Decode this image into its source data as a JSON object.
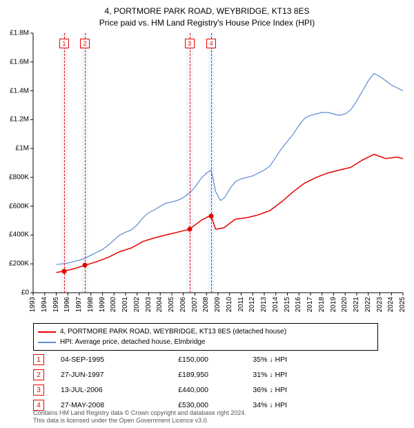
{
  "title_line1": "4, PORTMORE PARK ROAD, WEYBRIDGE, KT13 8ES",
  "title_line2": "Price paid vs. HM Land Registry's House Price Index (HPI)",
  "chart": {
    "type": "line",
    "background_color": "#ffffff",
    "xlim": [
      1993,
      2025
    ],
    "ylim": [
      0,
      1800000
    ],
    "ytick_step": 200000,
    "y_labels": [
      "£0",
      "£200K",
      "£400K",
      "£600K",
      "£800K",
      "£1M",
      "£1.2M",
      "£1.4M",
      "£1.6M",
      "£1.8M"
    ],
    "x_labels": [
      "1993",
      "1994",
      "1995",
      "1996",
      "1997",
      "1998",
      "1999",
      "2000",
      "2001",
      "2002",
      "2003",
      "2004",
      "2005",
      "2006",
      "2007",
      "2008",
      "2009",
      "2010",
      "2011",
      "2012",
      "2013",
      "2014",
      "2015",
      "2016",
      "2017",
      "2018",
      "2019",
      "2020",
      "2021",
      "2022",
      "2023",
      "2024",
      "2025"
    ],
    "series": [
      {
        "name": "price_paid",
        "label": "4, PORTMORE PARK ROAD, WEYBRIDGE, KT13 8ES (detached house)",
        "color": "#e60000",
        "line_width": 1.5,
        "data": [
          [
            1995.0,
            140000
          ],
          [
            1995.68,
            150000
          ],
          [
            1996.5,
            165000
          ],
          [
            1997.49,
            189950
          ],
          [
            1998.5,
            215000
          ],
          [
            1999.5,
            245000
          ],
          [
            2000.5,
            285000
          ],
          [
            2001.5,
            310000
          ],
          [
            2002.5,
            355000
          ],
          [
            2003.5,
            380000
          ],
          [
            2004.5,
            400000
          ],
          [
            2005.5,
            420000
          ],
          [
            2006.53,
            440000
          ],
          [
            2007.5,
            500000
          ],
          [
            2008.2,
            530000
          ],
          [
            2008.41,
            530000
          ],
          [
            2008.8,
            440000
          ],
          [
            2009.5,
            450000
          ],
          [
            2010.5,
            510000
          ],
          [
            2011.5,
            520000
          ],
          [
            2012.5,
            540000
          ],
          [
            2013.5,
            570000
          ],
          [
            2014.5,
            630000
          ],
          [
            2015.5,
            700000
          ],
          [
            2016.5,
            760000
          ],
          [
            2017.5,
            800000
          ],
          [
            2018.5,
            830000
          ],
          [
            2019.5,
            850000
          ],
          [
            2020.5,
            870000
          ],
          [
            2021.5,
            920000
          ],
          [
            2022.5,
            960000
          ],
          [
            2023.5,
            930000
          ],
          [
            2024.5,
            940000
          ],
          [
            2025.0,
            930000
          ]
        ]
      },
      {
        "name": "hpi",
        "label": "HPI: Average price, detached house, Elmbridge",
        "color": "#5b8bd4",
        "line_width": 1.2,
        "data": [
          [
            1995.0,
            195000
          ],
          [
            1995.5,
            200000
          ],
          [
            1996.0,
            205000
          ],
          [
            1996.5,
            215000
          ],
          [
            1997.0,
            225000
          ],
          [
            1997.5,
            240000
          ],
          [
            1998.0,
            260000
          ],
          [
            1998.5,
            280000
          ],
          [
            1999.0,
            300000
          ],
          [
            1999.5,
            330000
          ],
          [
            2000.0,
            365000
          ],
          [
            2000.5,
            400000
          ],
          [
            2001.0,
            420000
          ],
          [
            2001.5,
            435000
          ],
          [
            2002.0,
            470000
          ],
          [
            2002.5,
            520000
          ],
          [
            2003.0,
            555000
          ],
          [
            2003.5,
            575000
          ],
          [
            2004.0,
            600000
          ],
          [
            2004.5,
            620000
          ],
          [
            2005.0,
            630000
          ],
          [
            2005.5,
            640000
          ],
          [
            2006.0,
            660000
          ],
          [
            2006.5,
            690000
          ],
          [
            2007.0,
            730000
          ],
          [
            2007.5,
            790000
          ],
          [
            2008.0,
            830000
          ],
          [
            2008.4,
            850000
          ],
          [
            2008.8,
            700000
          ],
          [
            2009.2,
            640000
          ],
          [
            2009.6,
            660000
          ],
          [
            2010.0,
            720000
          ],
          [
            2010.5,
            770000
          ],
          [
            2011.0,
            790000
          ],
          [
            2011.5,
            800000
          ],
          [
            2012.0,
            810000
          ],
          [
            2012.5,
            830000
          ],
          [
            2013.0,
            850000
          ],
          [
            2013.5,
            880000
          ],
          [
            2014.0,
            940000
          ],
          [
            2014.5,
            1000000
          ],
          [
            2015.0,
            1050000
          ],
          [
            2015.5,
            1100000
          ],
          [
            2016.0,
            1160000
          ],
          [
            2016.5,
            1210000
          ],
          [
            2017.0,
            1230000
          ],
          [
            2017.5,
            1240000
          ],
          [
            2018.0,
            1250000
          ],
          [
            2018.5,
            1250000
          ],
          [
            2019.0,
            1240000
          ],
          [
            2019.5,
            1230000
          ],
          [
            2020.0,
            1240000
          ],
          [
            2020.5,
            1270000
          ],
          [
            2021.0,
            1330000
          ],
          [
            2021.5,
            1400000
          ],
          [
            2022.0,
            1470000
          ],
          [
            2022.5,
            1520000
          ],
          [
            2023.0,
            1500000
          ],
          [
            2023.5,
            1470000
          ],
          [
            2024.0,
            1440000
          ],
          [
            2024.5,
            1420000
          ],
          [
            2025.0,
            1400000
          ]
        ]
      }
    ],
    "events": [
      {
        "n": "1",
        "year": 1995.68,
        "band_color": "#e6eef9",
        "line_color": "#e60000",
        "marker_color": "#e60000"
      },
      {
        "n": "2",
        "year": 1997.49,
        "band_color": "#e6eef9",
        "line_color": "#e60000",
        "marker_color": "#e60000"
      },
      {
        "n": "3",
        "year": 2006.53,
        "band_color": "#e6eef9",
        "line_color": "#e60000",
        "marker_color": "#e60000"
      },
      {
        "n": "4",
        "year": 2008.41,
        "band_color": "#e6eef9",
        "line_color": "#e60000",
        "marker_color": "#e60000"
      }
    ],
    "price_points": [
      {
        "year": 1995.68,
        "value": 150000,
        "color": "#e60000"
      },
      {
        "year": 1997.49,
        "value": 189950,
        "color": "#e60000"
      },
      {
        "year": 2006.53,
        "value": 440000,
        "color": "#e60000"
      },
      {
        "year": 2008.41,
        "value": 530000,
        "color": "#e60000"
      }
    ]
  },
  "legend": {
    "series1_color": "#e60000",
    "series1_label": "4, PORTMORE PARK ROAD, WEYBRIDGE, KT13 8ES (detached house)",
    "series2_color": "#5b8bd4",
    "series2_label": "HPI: Average price, detached house, Elmbridge"
  },
  "transactions": [
    {
      "n": "1",
      "date": "04-SEP-1995",
      "price": "£150,000",
      "pct": "35% ↓ HPI",
      "color": "#e60000"
    },
    {
      "n": "2",
      "date": "27-JUN-1997",
      "price": "£189,950",
      "pct": "31% ↓ HPI",
      "color": "#e60000"
    },
    {
      "n": "3",
      "date": "13-JUL-2006",
      "price": "£440,000",
      "pct": "36% ↓ HPI",
      "color": "#e60000"
    },
    {
      "n": "4",
      "date": "27-MAY-2008",
      "price": "£530,000",
      "pct": "34% ↓ HPI",
      "color": "#e60000"
    }
  ],
  "footer_line1": "Contains HM Land Registry data © Crown copyright and database right 2024.",
  "footer_line2": "This data is licensed under the Open Government Licence v3.0."
}
